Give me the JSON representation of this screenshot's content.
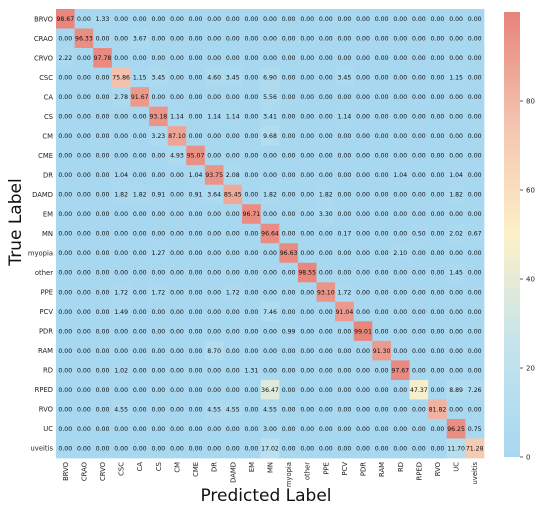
{
  "chart_data": {
    "type": "heatmap",
    "title": "",
    "xlabel": "Predicted Label",
    "ylabel": "True Label",
    "labels": [
      "BRVO",
      "CRAO",
      "CRVO",
      "CSC",
      "CA",
      "CS",
      "CM",
      "CME",
      "DR",
      "DAMD",
      "EM",
      "MN",
      "myopia",
      "other",
      "PPE",
      "PCV",
      "PDR",
      "RAM",
      "RD",
      "RPED",
      "RVO",
      "UC",
      "uveitis"
    ],
    "matrix": [
      [
        98.67,
        0.0,
        1.33,
        0.0,
        0.0,
        0.0,
        0.0,
        0.0,
        0.0,
        0.0,
        0.0,
        0.0,
        0.0,
        0.0,
        0.0,
        0.0,
        0.0,
        0.0,
        0.0,
        0.0,
        0.0,
        0.0,
        0.0
      ],
      [
        0.0,
        96.33,
        0.0,
        0.0,
        3.67,
        0.0,
        0.0,
        0.0,
        0.0,
        0.0,
        0.0,
        0.0,
        0.0,
        0.0,
        0.0,
        0.0,
        0.0,
        0.0,
        0.0,
        0.0,
        0.0,
        0.0,
        0.0
      ],
      [
        2.22,
        0.0,
        97.78,
        0.0,
        0.0,
        0.0,
        0.0,
        0.0,
        0.0,
        0.0,
        0.0,
        0.0,
        0.0,
        0.0,
        0.0,
        0.0,
        0.0,
        0.0,
        0.0,
        0.0,
        0.0,
        0.0,
        0.0
      ],
      [
        0.0,
        0.0,
        0.0,
        75.86,
        1.15,
        3.45,
        0.0,
        0.0,
        4.6,
        3.45,
        0.0,
        6.9,
        0.0,
        0.0,
        0.0,
        3.45,
        0.0,
        0.0,
        0.0,
        0.0,
        0.0,
        1.15,
        0.0
      ],
      [
        0.0,
        0.0,
        0.0,
        2.78,
        91.67,
        0.0,
        0.0,
        0.0,
        0.0,
        0.0,
        0.0,
        5.56,
        0.0,
        0.0,
        0.0,
        0.0,
        0.0,
        0.0,
        0.0,
        0.0,
        0.0,
        0.0,
        0.0
      ],
      [
        0.0,
        0.0,
        0.0,
        0.0,
        0.0,
        93.18,
        1.14,
        0.0,
        1.14,
        1.14,
        0.0,
        3.41,
        0.0,
        0.0,
        0.0,
        1.14,
        0.0,
        0.0,
        0.0,
        0.0,
        0.0,
        0.0,
        0.0
      ],
      [
        0.0,
        0.0,
        0.0,
        0.0,
        0.0,
        3.23,
        87.1,
        0.0,
        0.0,
        0.0,
        0.0,
        9.68,
        0.0,
        0.0,
        0.0,
        0.0,
        0.0,
        0.0,
        0.0,
        0.0,
        0.0,
        0.0,
        0.0
      ],
      [
        0.0,
        0.0,
        0.0,
        0.0,
        0.0,
        0.0,
        4.93,
        95.07,
        0.0,
        0.0,
        0.0,
        0.0,
        0.0,
        0.0,
        0.0,
        0.0,
        0.0,
        0.0,
        0.0,
        0.0,
        0.0,
        0.0,
        0.0
      ],
      [
        0.0,
        0.0,
        0.0,
        1.04,
        0.0,
        0.0,
        0.0,
        1.04,
        93.75,
        2.08,
        0.0,
        0.0,
        0.0,
        0.0,
        0.0,
        0.0,
        0.0,
        0.0,
        1.04,
        0.0,
        0.0,
        1.04,
        0.0
      ],
      [
        0.0,
        0.0,
        0.0,
        1.82,
        1.82,
        0.91,
        0.0,
        0.91,
        3.64,
        85.45,
        0.0,
        1.82,
        0.0,
        0.0,
        1.82,
        0.0,
        0.0,
        0.0,
        0.0,
        0.0,
        0.0,
        1.82,
        0.0
      ],
      [
        0.0,
        0.0,
        0.0,
        0.0,
        0.0,
        0.0,
        0.0,
        0.0,
        0.0,
        0.0,
        96.71,
        0.0,
        0.0,
        0.0,
        3.3,
        0.0,
        0.0,
        0.0,
        0.0,
        0.0,
        0.0,
        0.0,
        0.0
      ],
      [
        0.0,
        0.0,
        0.0,
        0.0,
        0.0,
        0.0,
        0.0,
        0.0,
        0.0,
        0.0,
        0.0,
        96.64,
        0.0,
        0.0,
        0.0,
        0.17,
        0.0,
        0.0,
        0.0,
        0.5,
        0.0,
        2.02,
        0.67
      ],
      [
        0.0,
        0.0,
        0.0,
        0.0,
        0.0,
        1.27,
        0.0,
        0.0,
        0.0,
        0.0,
        0.0,
        0.0,
        96.63,
        0.0,
        0.0,
        0.0,
        0.0,
        0.0,
        2.1,
        0.0,
        0.0,
        0.0,
        0.0
      ],
      [
        0.0,
        0.0,
        0.0,
        0.0,
        0.0,
        0.0,
        0.0,
        0.0,
        0.0,
        0.0,
        0.0,
        0.0,
        0.0,
        98.55,
        0.0,
        0.0,
        0.0,
        0.0,
        0.0,
        0.0,
        0.0,
        1.45,
        0.0
      ],
      [
        0.0,
        0.0,
        0.0,
        1.72,
        0.0,
        1.72,
        0.0,
        0.0,
        0.0,
        1.72,
        0.0,
        0.0,
        0.0,
        0.0,
        93.1,
        1.72,
        0.0,
        0.0,
        0.0,
        0.0,
        0.0,
        0.0,
        0.0
      ],
      [
        0.0,
        0.0,
        0.0,
        1.49,
        0.0,
        0.0,
        0.0,
        0.0,
        0.0,
        0.0,
        0.0,
        7.46,
        0.0,
        0.0,
        0.0,
        91.04,
        0.0,
        0.0,
        0.0,
        0.0,
        0.0,
        0.0,
        0.0
      ],
      [
        0.0,
        0.0,
        0.0,
        0.0,
        0.0,
        0.0,
        0.0,
        0.0,
        0.0,
        0.0,
        0.0,
        0.0,
        0.99,
        0.0,
        0.0,
        0.0,
        99.01,
        0.0,
        0.0,
        0.0,
        0.0,
        0.0,
        0.0
      ],
      [
        0.0,
        0.0,
        0.0,
        0.0,
        0.0,
        0.0,
        0.0,
        0.0,
        8.7,
        0.0,
        0.0,
        0.0,
        0.0,
        0.0,
        0.0,
        0.0,
        0.0,
        91.3,
        0.0,
        0.0,
        0.0,
        0.0,
        0.0
      ],
      [
        0.0,
        0.0,
        0.0,
        1.02,
        0.0,
        0.0,
        0.0,
        0.0,
        0.0,
        0.0,
        1.31,
        0.0,
        0.0,
        0.0,
        0.0,
        0.0,
        0.0,
        0.0,
        97.67,
        0.0,
        0.0,
        0.0,
        0.0
      ],
      [
        0.0,
        0.0,
        0.0,
        0.0,
        0.0,
        0.0,
        0.0,
        0.0,
        0.0,
        0.0,
        0.0,
        36.47,
        0.0,
        0.0,
        0.0,
        0.0,
        0.0,
        0.0,
        0.0,
        47.37,
        0.0,
        8.89,
        7.26
      ],
      [
        0.0,
        0.0,
        0.0,
        4.55,
        0.0,
        0.0,
        0.0,
        0.0,
        4.55,
        4.55,
        0.0,
        4.55,
        0.0,
        0.0,
        0.0,
        0.0,
        0.0,
        0.0,
        0.0,
        0.0,
        81.82,
        0.0,
        0.0
      ],
      [
        0.0,
        0.0,
        0.0,
        0.0,
        0.0,
        0.0,
        0.0,
        0.0,
        0.0,
        0.0,
        0.0,
        3.0,
        0.0,
        0.0,
        0.0,
        0.0,
        0.0,
        0.0,
        0.0,
        0.0,
        0.0,
        96.25,
        0.75
      ],
      [
        0.0,
        0.0,
        0.0,
        0.0,
        0.0,
        0.0,
        0.0,
        0.0,
        0.0,
        0.0,
        0.0,
        17.02,
        0.0,
        0.0,
        0.0,
        0.0,
        0.0,
        0.0,
        0.0,
        0.0,
        0.0,
        11.7,
        71.28
      ]
    ],
    "value_range": [
      0,
      100
    ],
    "colorbar": {
      "ticks": [
        0,
        20,
        40,
        60,
        80
      ],
      "colors": [
        "#a8d8f0",
        "#c4e4ed",
        "#fdf0c8",
        "#f4c4b0",
        "#e8837a"
      ]
    }
  }
}
